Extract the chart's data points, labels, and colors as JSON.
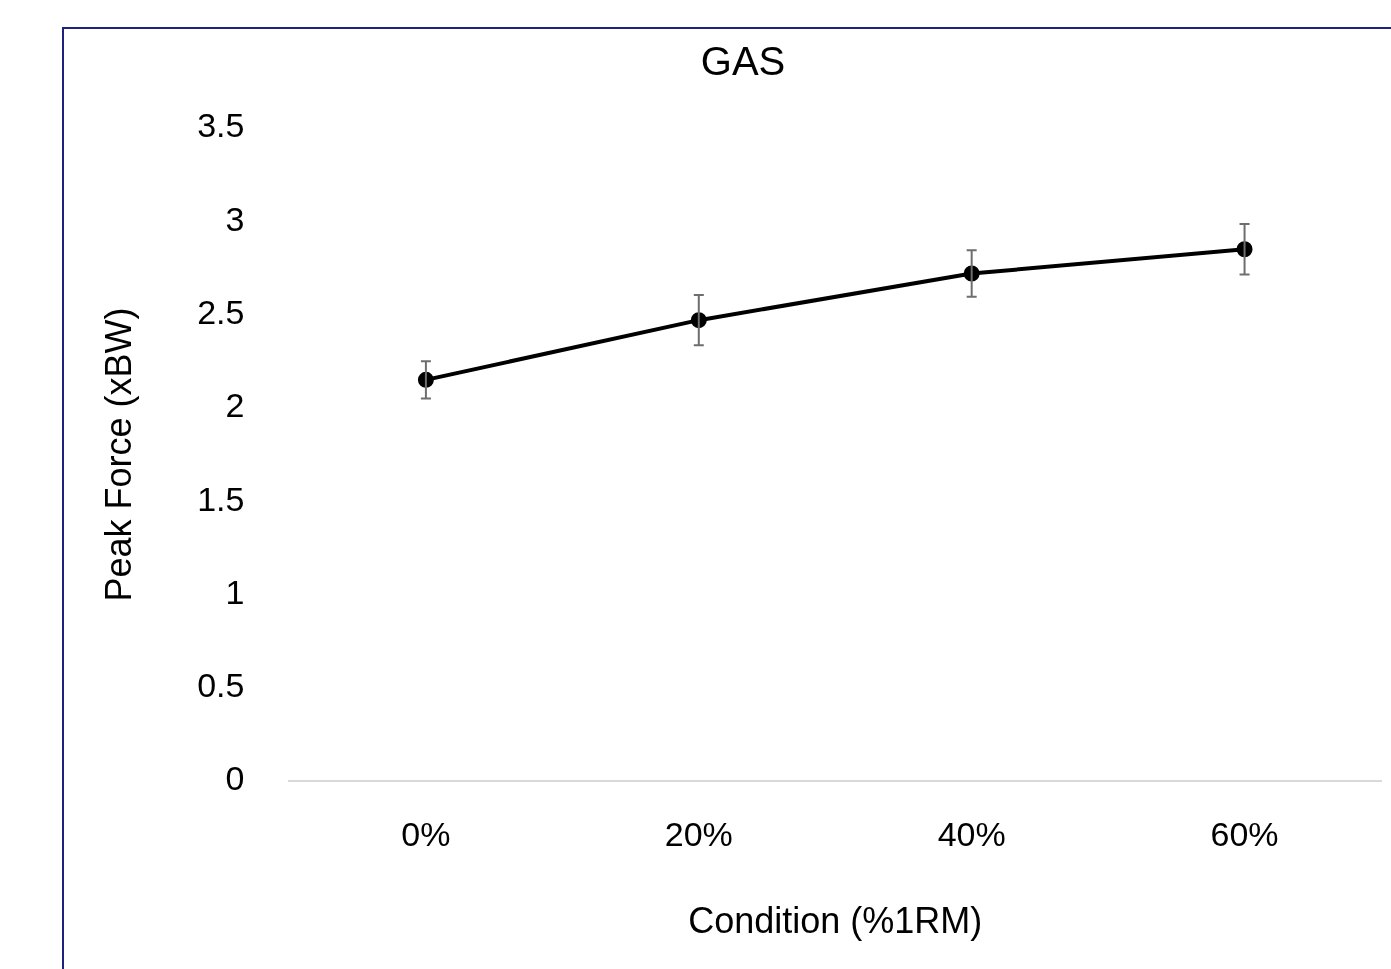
{
  "chart_data": {
    "type": "line",
    "title": "GAS",
    "xlabel": "Condition (%1RM)",
    "ylabel": "Peak Force (xBW)",
    "categories": [
      "0%",
      "20%",
      "40%",
      "60%"
    ],
    "series": [
      {
        "color": "#000000",
        "values": [
          2.15,
          2.47,
          2.72,
          2.85
        ],
        "errors": [
          0.1,
          0.135,
          0.125,
          0.135
        ]
      }
    ],
    "ylim": [
      0,
      3.5
    ],
    "yticks": [
      0,
      0.5,
      1,
      1.5,
      2,
      2.5,
      3,
      3.5
    ],
    "grid": false,
    "legend": false,
    "marker": "circle",
    "line_style": "solid"
  }
}
